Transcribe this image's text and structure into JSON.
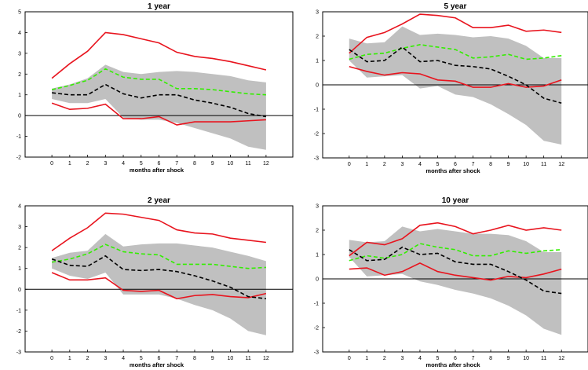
{
  "colors": {
    "band": "#c0c0c0",
    "upper_lower": "#e8141e",
    "green": "#33ee00",
    "black": "#000000"
  },
  "chart_data": [
    {
      "type": "line",
      "title": "1 year",
      "xlabel": "months after shock",
      "ylabel": "",
      "x": [
        0,
        1,
        2,
        3,
        4,
        5,
        6,
        7,
        8,
        9,
        10,
        11,
        12
      ],
      "xlim": [
        -1.5,
        13.5
      ],
      "ylim": [
        -2,
        5
      ],
      "yticks": [
        -2,
        -1,
        0,
        1,
        2,
        3,
        4,
        5
      ],
      "band": {
        "upper": [
          1.3,
          1.5,
          1.8,
          2.45,
          2.1,
          2.0,
          2.1,
          2.15,
          2.1,
          2.0,
          1.9,
          1.7,
          1.6
        ],
        "lower": [
          0.8,
          0.6,
          0.6,
          0.8,
          -0.1,
          -0.2,
          -0.2,
          -0.35,
          -0.6,
          -0.85,
          -1.1,
          -1.5,
          -1.65
        ]
      },
      "series": [
        {
          "style": "solid-red",
          "values": [
            1.8,
            2.5,
            3.1,
            4.0,
            3.9,
            3.7,
            3.5,
            3.05,
            2.85,
            2.75,
            2.6,
            2.4,
            2.2
          ]
        },
        {
          "style": "solid-red",
          "values": [
            0.6,
            0.3,
            0.35,
            0.55,
            -0.15,
            -0.15,
            -0.05,
            -0.45,
            -0.3,
            -0.3,
            -0.3,
            -0.25,
            -0.2
          ]
        },
        {
          "style": "dashed-green",
          "values": [
            1.25,
            1.45,
            1.7,
            2.25,
            1.85,
            1.75,
            1.75,
            1.3,
            1.3,
            1.25,
            1.15,
            1.05,
            1.0
          ]
        },
        {
          "style": "dashed-black",
          "values": [
            1.1,
            1.0,
            1.0,
            1.5,
            1.05,
            0.85,
            1.0,
            1.0,
            0.75,
            0.6,
            0.4,
            0.1,
            -0.05
          ]
        }
      ]
    },
    {
      "type": "line",
      "title": "5 year",
      "xlabel": "months after shock",
      "ylabel": "",
      "x": [
        0,
        1,
        2,
        3,
        4,
        5,
        6,
        7,
        8,
        9,
        10,
        11,
        12
      ],
      "xlim": [
        -1.5,
        13.5
      ],
      "ylim": [
        -3,
        3
      ],
      "yticks": [
        -3,
        -2,
        -1,
        0,
        1,
        2,
        3
      ],
      "band": {
        "upper": [
          1.9,
          1.7,
          1.75,
          2.4,
          2.05,
          2.1,
          2.05,
          1.95,
          2.0,
          1.9,
          1.6,
          1.1,
          1.1
        ],
        "lower": [
          1.0,
          0.3,
          0.35,
          0.4,
          -0.15,
          -0.05,
          -0.4,
          -0.5,
          -0.8,
          -1.2,
          -1.65,
          -2.3,
          -2.45
        ]
      },
      "series": [
        {
          "style": "solid-red",
          "values": [
            1.3,
            1.95,
            2.15,
            2.5,
            2.9,
            2.85,
            2.75,
            2.35,
            2.35,
            2.45,
            2.2,
            2.25,
            2.15
          ]
        },
        {
          "style": "solid-red",
          "values": [
            0.75,
            0.55,
            0.4,
            0.5,
            0.45,
            0.2,
            0.15,
            -0.1,
            -0.1,
            0.05,
            -0.1,
            -0.05,
            0.2
          ]
        },
        {
          "style": "dashed-green",
          "values": [
            1.05,
            1.25,
            1.3,
            1.5,
            1.65,
            1.55,
            1.45,
            1.1,
            1.15,
            1.25,
            1.05,
            1.1,
            1.2
          ]
        },
        {
          "style": "dashed-black",
          "values": [
            1.45,
            0.95,
            1.0,
            1.55,
            0.95,
            1.0,
            0.8,
            0.75,
            0.65,
            0.35,
            0.0,
            -0.55,
            -0.75
          ]
        }
      ]
    },
    {
      "type": "line",
      "title": "2 year",
      "xlabel": "months after shock",
      "ylabel": "",
      "x": [
        0,
        1,
        2,
        3,
        4,
        5,
        6,
        7,
        8,
        9,
        10,
        11,
        12
      ],
      "xlim": [
        -1.5,
        13.5
      ],
      "ylim": [
        -3,
        4
      ],
      "yticks": [
        -3,
        -2,
        -1,
        0,
        1,
        2,
        3,
        4
      ],
      "band": {
        "upper": [
          1.5,
          1.75,
          1.85,
          2.65,
          2.05,
          2.15,
          2.2,
          2.2,
          2.1,
          2.0,
          1.8,
          1.6,
          1.35
        ],
        "lower": [
          1.0,
          0.65,
          0.5,
          0.8,
          -0.25,
          -0.25,
          -0.25,
          -0.45,
          -0.75,
          -1.0,
          -1.4,
          -2.0,
          -2.2
        ]
      },
      "series": [
        {
          "style": "solid-red",
          "values": [
            1.85,
            2.45,
            2.95,
            3.65,
            3.6,
            3.45,
            3.3,
            2.85,
            2.7,
            2.65,
            2.45,
            2.35,
            2.25
          ]
        },
        {
          "style": "solid-red",
          "values": [
            0.8,
            0.45,
            0.45,
            0.55,
            -0.05,
            -0.1,
            -0.05,
            -0.45,
            -0.3,
            -0.25,
            -0.35,
            -0.4,
            -0.2
          ]
        },
        {
          "style": "dashed-green",
          "values": [
            1.3,
            1.45,
            1.7,
            2.15,
            1.8,
            1.7,
            1.65,
            1.2,
            1.2,
            1.2,
            1.1,
            1.0,
            1.05
          ]
        },
        {
          "style": "dashed-black",
          "values": [
            1.45,
            1.15,
            1.1,
            1.6,
            0.95,
            0.9,
            0.95,
            0.85,
            0.65,
            0.4,
            0.1,
            -0.35,
            -0.45
          ]
        }
      ]
    },
    {
      "type": "line",
      "title": "10 year",
      "xlabel": "months after shock",
      "ylabel": "",
      "x": [
        0,
        1,
        2,
        3,
        4,
        5,
        6,
        7,
        8,
        9,
        10,
        11,
        12
      ],
      "xlim": [
        -1.5,
        13.5
      ],
      "ylim": [
        -3,
        3
      ],
      "yticks": [
        -3,
        -2,
        -1,
        0,
        1,
        2,
        3
      ],
      "band": {
        "upper": [
          1.6,
          1.5,
          1.55,
          2.15,
          1.95,
          2.05,
          1.95,
          1.85,
          1.85,
          1.8,
          1.55,
          1.1,
          1.1
        ],
        "lower": [
          0.9,
          0.1,
          0.15,
          0.2,
          -0.1,
          -0.25,
          -0.45,
          -0.6,
          -0.8,
          -1.1,
          -1.5,
          -2.05,
          -2.3
        ]
      },
      "series": [
        {
          "style": "solid-red",
          "values": [
            0.95,
            1.5,
            1.4,
            1.65,
            2.2,
            2.3,
            2.15,
            1.85,
            2.0,
            2.2,
            2.0,
            2.1,
            2.0
          ]
        },
        {
          "style": "solid-red",
          "values": [
            0.4,
            0.45,
            0.15,
            0.3,
            0.65,
            0.3,
            0.15,
            0.05,
            -0.05,
            0.1,
            0.05,
            0.2,
            0.4
          ]
        },
        {
          "style": "dashed-green",
          "values": [
            0.75,
            0.95,
            0.85,
            1.0,
            1.45,
            1.3,
            1.2,
            0.95,
            0.95,
            1.15,
            1.05,
            1.15,
            1.2
          ]
        },
        {
          "style": "dashed-black",
          "values": [
            1.2,
            0.75,
            0.8,
            1.3,
            1.0,
            1.05,
            0.7,
            0.6,
            0.6,
            0.3,
            -0.05,
            -0.5,
            -0.6
          ]
        }
      ]
    }
  ]
}
